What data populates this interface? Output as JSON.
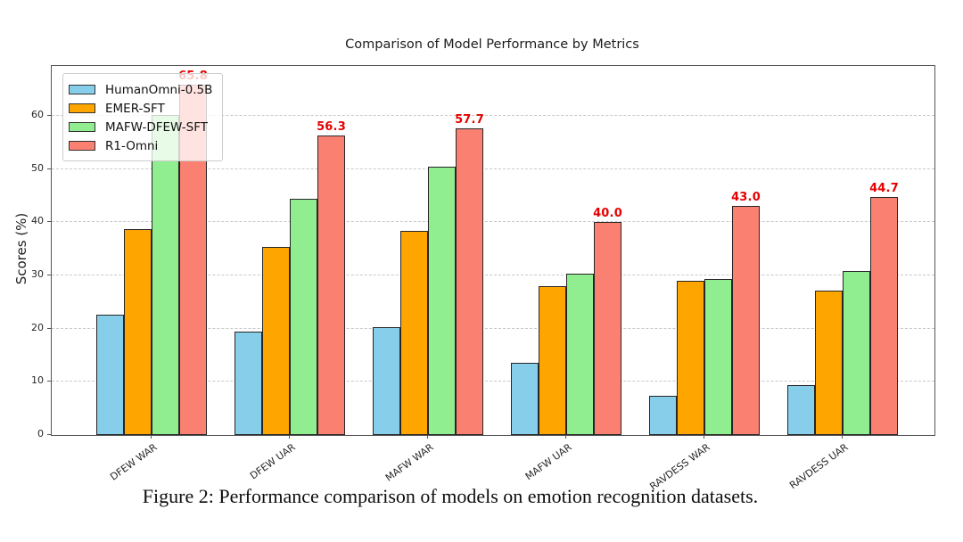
{
  "figure": {
    "caption": "Figure 2: Performance comparison of models on emotion recognition datasets."
  },
  "chart_data": {
    "type": "bar",
    "title": "Comparison of Model Performance by Metrics",
    "xlabel": "",
    "ylabel": "Scores (%)",
    "categories": [
      "DFEW WAR",
      "DFEW UAR",
      "MAFW WAR",
      "MAFW UAR",
      "RAVDESS WAR",
      "RAVDESS UAR"
    ],
    "series": [
      {
        "name": "HumanOmni-0.5B",
        "color": "#87CEEB",
        "values": [
          22.6,
          19.4,
          20.2,
          13.5,
          7.3,
          9.4
        ]
      },
      {
        "name": "EMER-SFT",
        "color": "#FFA500",
        "values": [
          38.7,
          35.3,
          38.4,
          28.0,
          29.0,
          27.2
        ]
      },
      {
        "name": "MAFW-DFEW-SFT",
        "color": "#90EE90",
        "values": [
          60.2,
          44.4,
          50.4,
          30.4,
          29.3,
          30.8
        ]
      },
      {
        "name": "R1-Omni",
        "color": "#FA8072",
        "values": [
          65.8,
          56.3,
          57.7,
          40.0,
          43.0,
          44.7
        ],
        "bar_labels": [
          "65.8",
          "56.3",
          "57.7",
          "40.0",
          "43.0",
          "44.7"
        ],
        "label_color": "#e50000"
      }
    ],
    "ylim": [
      0,
      69.4
    ],
    "yticks": [
      0,
      10,
      20,
      30,
      40,
      50,
      60
    ],
    "grid": "horizontal dashed",
    "legend_position": "upper left",
    "bar_edge_color": "#262626"
  }
}
